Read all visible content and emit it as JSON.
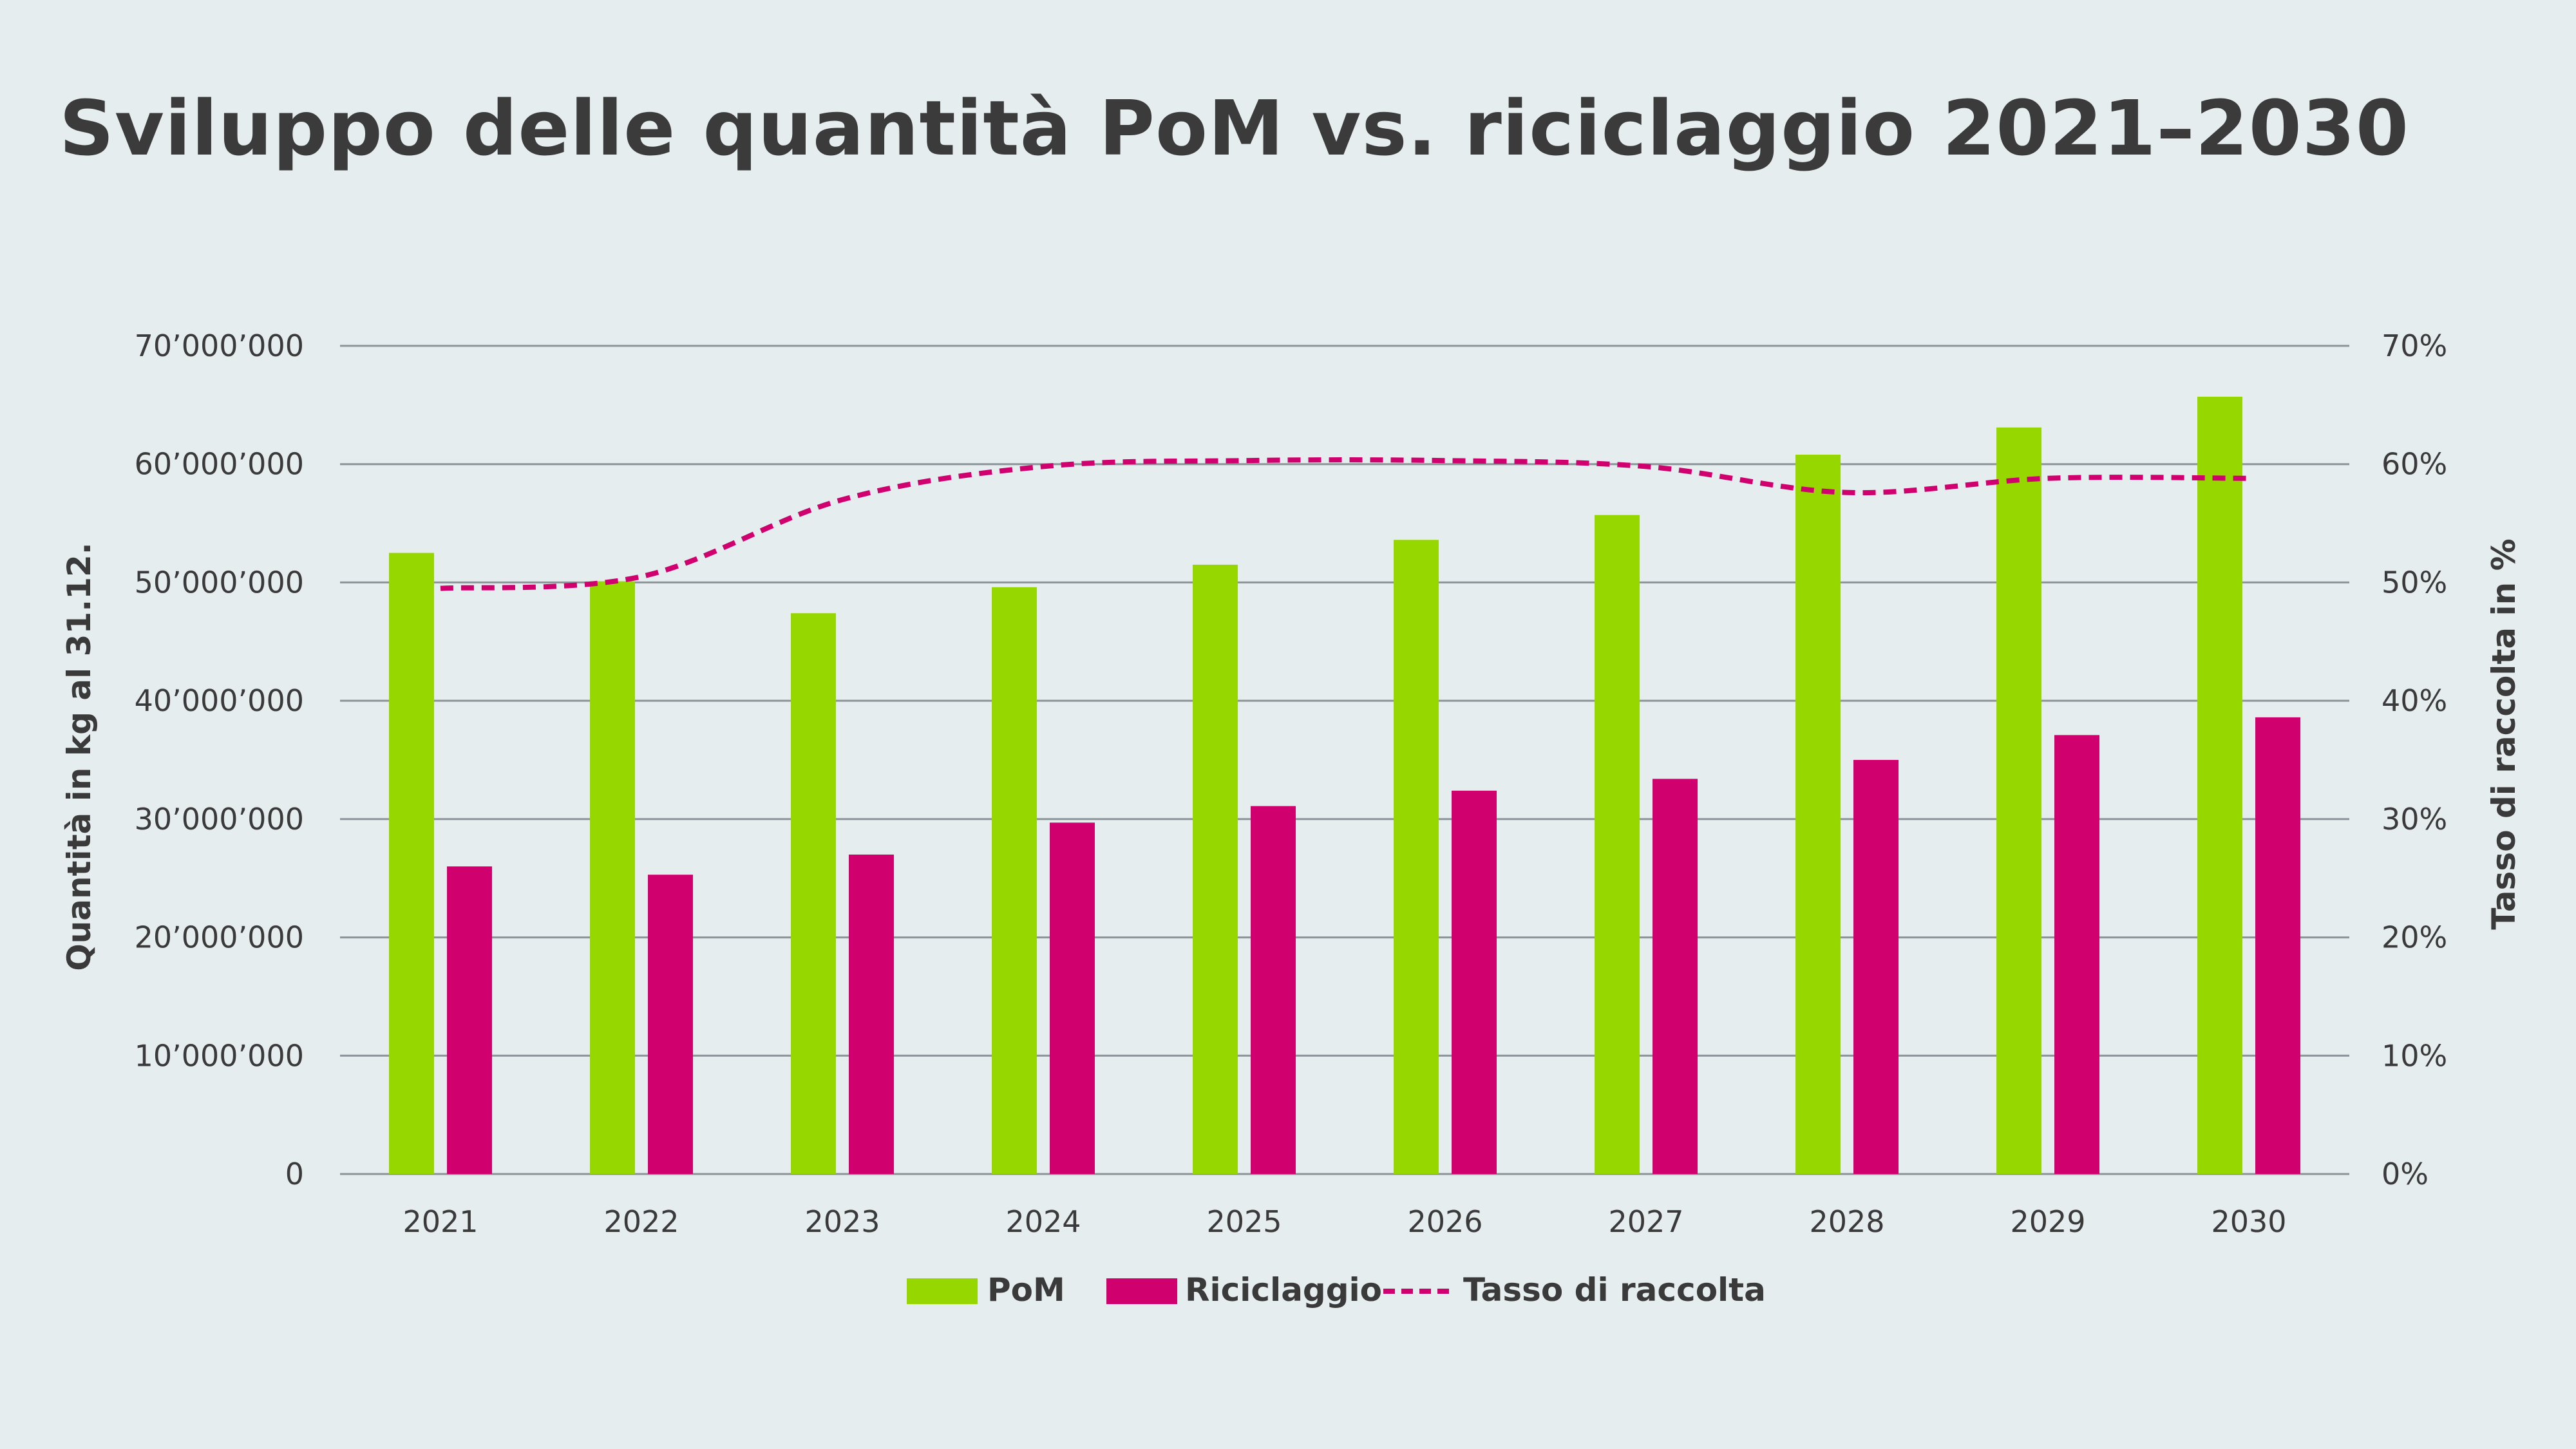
{
  "chart_data": {
    "type": "bar",
    "title": "Sviluppo delle quantità PoM vs. riciclaggio 2021–2030",
    "categories": [
      "2021",
      "2022",
      "2023",
      "2024",
      "2025",
      "2026",
      "2027",
      "2028",
      "2029",
      "2030"
    ],
    "series": [
      {
        "name": "PoM",
        "type": "bar",
        "axis": "left",
        "color": "#97d700",
        "values": [
          52500000,
          50100000,
          47400000,
          49600000,
          51500000,
          53600000,
          55700000,
          60800000,
          63100000,
          65700000
        ]
      },
      {
        "name": "Riciclaggio",
        "type": "bar",
        "axis": "left",
        "color": "#d1006f",
        "values": [
          26000000,
          25300000,
          27000000,
          29700000,
          31100000,
          32400000,
          33400000,
          35000000,
          37100000,
          38600000
        ]
      },
      {
        "name": "Tasso di raccolta",
        "type": "line",
        "style": "dashed",
        "axis": "right",
        "color": "#d1006f",
        "values": [
          49.5,
          50.5,
          57.0,
          59.8,
          60.3,
          60.3,
          59.8,
          57.6,
          58.8,
          58.8
        ]
      }
    ],
    "ylabel": "Quantità in kg al 31.12.",
    "ylabel_right": "Tasso di raccolta in %",
    "ylim": [
      0,
      70000000
    ],
    "ylim_right": [
      0,
      70
    ],
    "y_ticks": [
      "0",
      "10’000’000",
      "20’000’000",
      "30’000’000",
      "40’000’000",
      "50’000’000",
      "60’000’000",
      "70’000’000"
    ],
    "y_ticks_right": [
      "0%",
      "10%",
      "20%",
      "30%",
      "40%",
      "50%",
      "60%",
      "70%"
    ],
    "grid": true,
    "legend_position": "bottom-center"
  }
}
